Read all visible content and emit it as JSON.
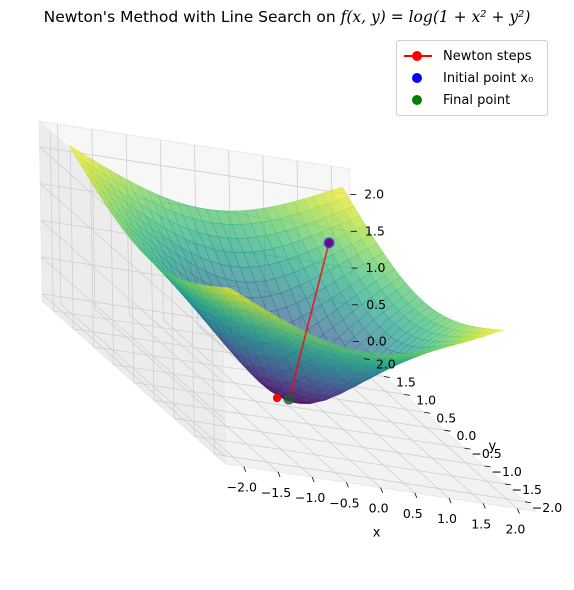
{
  "chart_data": {
    "type": "surface3d",
    "title": "Newton's Method with Line Search on f(x, y) = log(1 + x² + y²)",
    "xlabel": "x",
    "ylabel": "y",
    "zlabel": "",
    "xlim": [
      -2,
      2
    ],
    "ylim": [
      -2,
      2
    ],
    "zlim": [
      0,
      2.2
    ],
    "x_ticks": [
      "−2.0",
      "−1.5",
      "−1.0",
      "−0.5",
      "0.0",
      "0.5",
      "1.0",
      "1.5",
      "2.0"
    ],
    "y_ticks": [
      "−2.0",
      "−1.5",
      "−1.0",
      "−0.5",
      "0.0",
      "0.5",
      "1.0",
      "1.5",
      "2.0"
    ],
    "z_ticks": [
      "0.0",
      "0.5",
      "1.0",
      "1.5",
      "2.0"
    ],
    "surface": {
      "function": "log(1 + x^2 + y^2)",
      "colormap": "viridis",
      "alpha": 0.7
    },
    "series": [
      {
        "name": "Newton steps",
        "color": "#ff0000",
        "style": "line-with-markers",
        "x": [
          1.5,
          0.0,
          0.0
        ],
        "y": [
          1.5,
          0.0,
          0.0
        ],
        "z": [
          1.609,
          0.0,
          0.0
        ]
      },
      {
        "name": "Initial point x0",
        "color": "#0000ff",
        "style": "scatter",
        "x": [
          1.5
        ],
        "y": [
          1.5
        ],
        "z": [
          1.609
        ]
      },
      {
        "name": "Final point",
        "color": "#008000",
        "style": "scatter",
        "x": [
          0.0
        ],
        "y": [
          0.0
        ],
        "z": [
          0.0
        ]
      }
    ],
    "grid": true,
    "legend_position": "top-right"
  },
  "title_parts": {
    "prefix": "Newton's Method with Line Search on ",
    "math": "f(x, y) = log(1 + x² + y²)"
  },
  "legend": {
    "newton_steps": "Newton steps",
    "initial_point": "Initial point x₀",
    "final_point": "Final point"
  }
}
